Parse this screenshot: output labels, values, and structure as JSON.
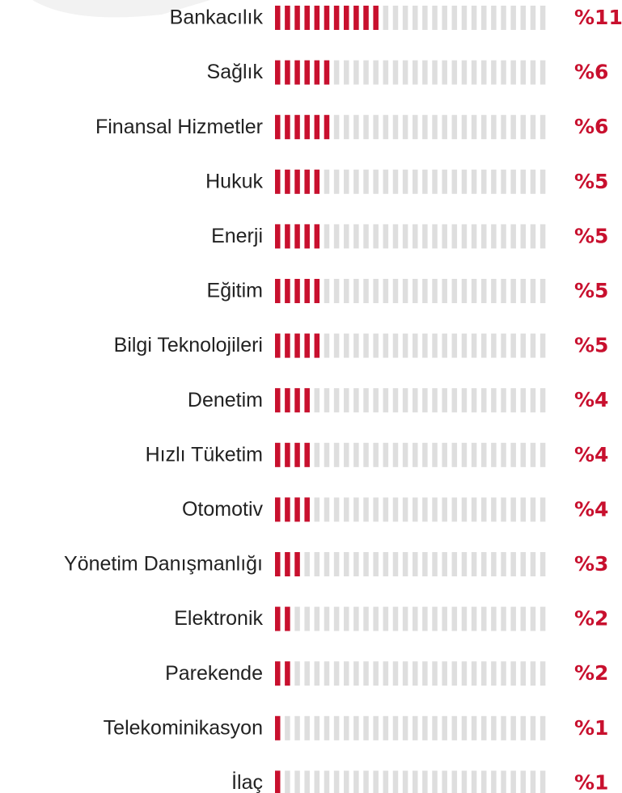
{
  "chart_data": {
    "type": "bar",
    "orientation": "horizontal",
    "categories": [
      "Bankacılık",
      "Sağlık",
      "Finansal Hizmetler",
      "Hukuk",
      "Enerji",
      "Eğitim",
      "Bilgi Teknolojileri",
      "Denetim",
      "Hızlı Tüketim",
      "Otomotiv",
      "Yönetim Danışmanlığı",
      "Elektronik",
      "Parekende",
      "Telekominikasyon",
      "İlaç"
    ],
    "values": [
      11,
      6,
      6,
      5,
      5,
      5,
      5,
      4,
      4,
      4,
      3,
      2,
      2,
      1,
      1
    ],
    "value_labels": [
      "%11",
      "%6",
      "%6",
      "%5",
      "%5",
      "%5",
      "%5",
      "%4",
      "%4",
      "%4",
      "%3",
      "%2",
      "%2",
      "%1",
      "%1"
    ],
    "color": "#c8102e",
    "xlim": [
      0,
      28
    ]
  }
}
